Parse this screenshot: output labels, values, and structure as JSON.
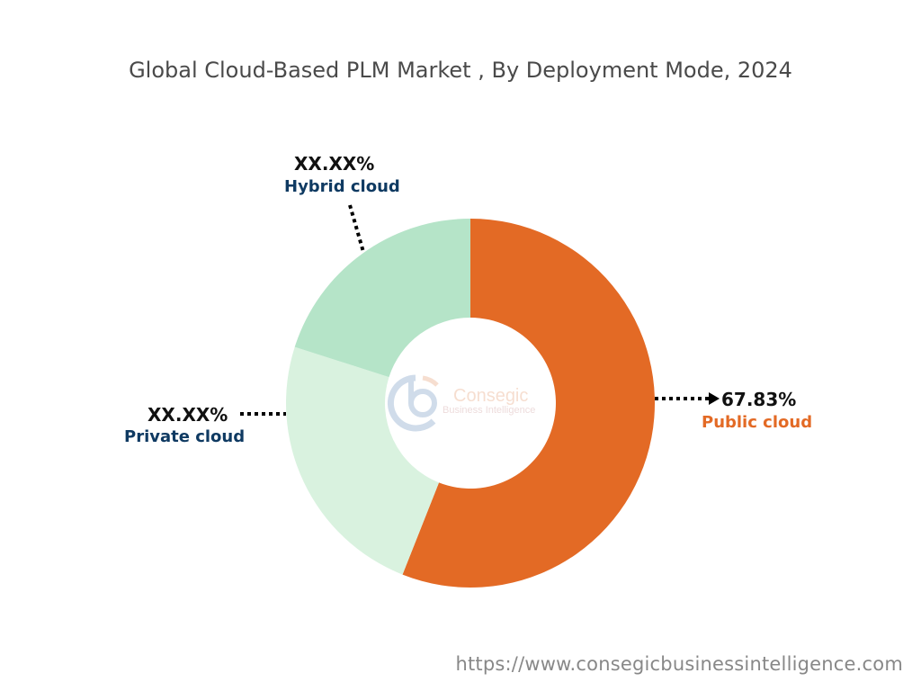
{
  "chart_data": {
    "type": "pie",
    "donut": true,
    "title": "Global Cloud-Based PLM Market , By Deployment Mode, 2024",
    "slices": [
      {
        "name": "Public cloud",
        "value": 67.83,
        "label": "67.83%",
        "color": "#e36a25",
        "label_color": "#e36a25"
      },
      {
        "name": "Private cloud",
        "value": null,
        "label": "XX.XX%",
        "color": "#d9f2df",
        "label_color": "#0f3a62"
      },
      {
        "name": "Hybrid cloud",
        "value": null,
        "label": "XX.XX%",
        "color": "#b5e4c8",
        "label_color": "#0f3a62"
      }
    ]
  },
  "watermark": {
    "brand": "Consegic",
    "tagline": "Business Intelligence"
  },
  "footer": {
    "url": "https://www.consegicbusinessintelligence.com"
  }
}
